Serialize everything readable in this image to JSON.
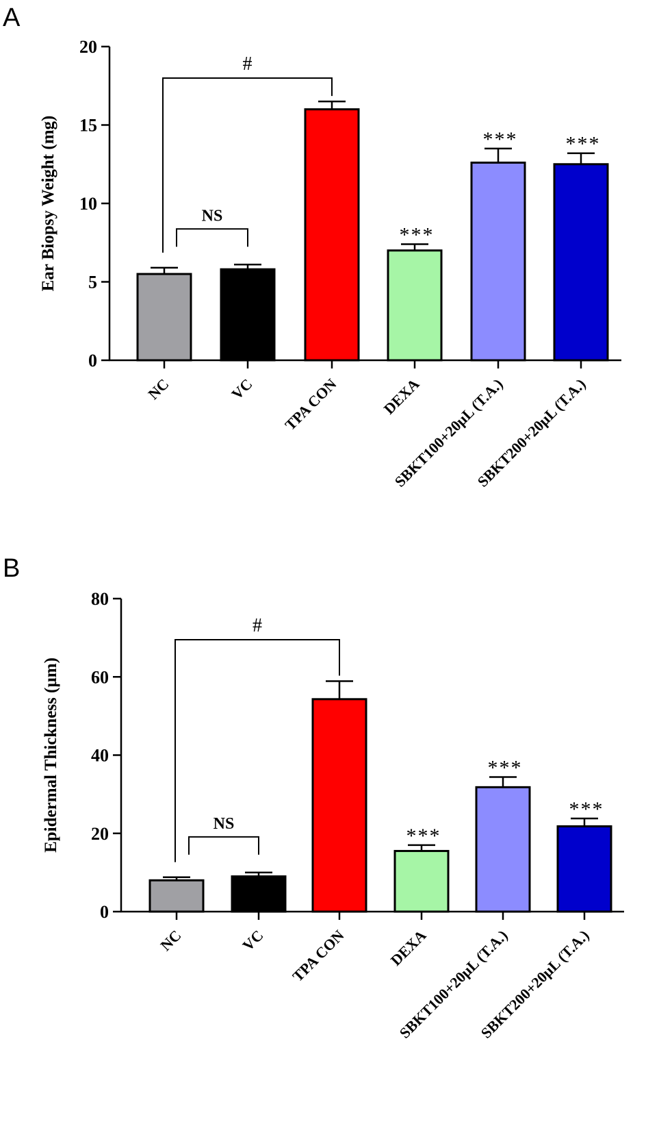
{
  "chart_data": [
    {
      "panel": "A",
      "type": "bar",
      "ylabel": "Ear Biopsy Weight (mg)",
      "ylim": [
        0,
        20
      ],
      "yticks": [
        0,
        5,
        10,
        15,
        20
      ],
      "categories": [
        "NC",
        "VC",
        "TPA CON",
        "DEXA",
        "SBKT100+20µL (T.A.)",
        "SBKT200+20µL (T.A.)"
      ],
      "values": [
        5.5,
        5.8,
        16.0,
        7.0,
        12.6,
        12.5
      ],
      "errors": [
        0.4,
        0.3,
        0.5,
        0.4,
        0.9,
        0.7
      ],
      "colors": [
        "#A0A0A4",
        "#000000",
        "#FF0000",
        "#A6F5A6",
        "#8C8CFF",
        "#0000CC"
      ],
      "stars": [
        "",
        "",
        "",
        "***",
        "***",
        "***"
      ],
      "brackets": [
        {
          "from": 0,
          "to": 2,
          "label": "#"
        },
        {
          "from": 0,
          "to": 1,
          "label": "NS"
        }
      ]
    },
    {
      "panel": "B",
      "type": "bar",
      "ylabel": "Epidermal Thickness (µm)",
      "ylim": [
        0,
        80
      ],
      "yticks": [
        0,
        20,
        40,
        60,
        80
      ],
      "categories": [
        "NC",
        "VC",
        "TPA CON",
        "DEXA",
        "SBKT100+20µL (T.A.)",
        "SBKT200+20µL (T.A.)"
      ],
      "values": [
        8.0,
        9.0,
        54.3,
        15.5,
        31.8,
        21.8
      ],
      "errors": [
        0.8,
        1.0,
        4.6,
        1.5,
        2.6,
        2.0
      ],
      "colors": [
        "#A0A0A4",
        "#000000",
        "#FF0000",
        "#A6F5A6",
        "#8C8CFF",
        "#0000CC"
      ],
      "stars": [
        "",
        "",
        "",
        "***",
        "***",
        "***"
      ],
      "brackets": [
        {
          "from": 0,
          "to": 2,
          "label": "#"
        },
        {
          "from": 0,
          "to": 1,
          "label": "NS"
        }
      ]
    }
  ]
}
